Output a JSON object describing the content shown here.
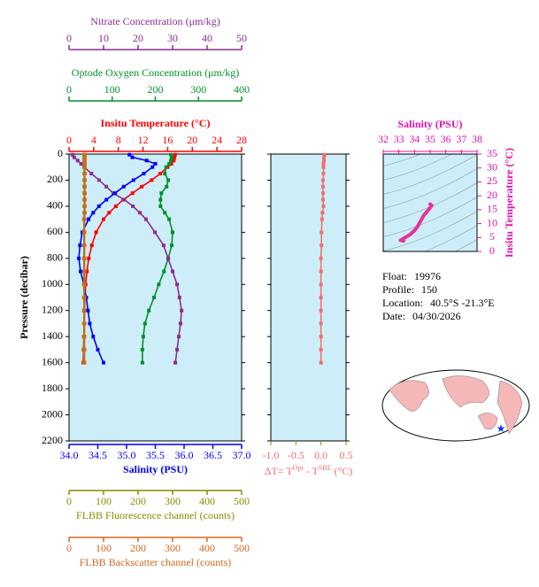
{
  "chart_data": [
    {
      "type": "line",
      "ylabel": "Pressure (decibar)",
      "ylim": [
        0,
        2200
      ],
      "y_inverted": true,
      "yticks": [
        0,
        200,
        400,
        600,
        800,
        1000,
        1200,
        1400,
        1600,
        1800,
        2000,
        2200
      ],
      "y": [
        5,
        25,
        50,
        75,
        100,
        150,
        200,
        250,
        300,
        350,
        400,
        450,
        500,
        600,
        700,
        800,
        900,
        1000,
        1100,
        1200,
        1300,
        1400,
        1500,
        1600
      ],
      "axes": [
        {
          "position": "top",
          "label": "Insitu Temperature (°C)",
          "color": "#ff0000",
          "xlim": [
            0,
            28
          ],
          "xticks": [
            0,
            4,
            8,
            12,
            16,
            20,
            24,
            28
          ],
          "values": [
            17.2,
            17.1,
            17.0,
            16.6,
            16.0,
            14.8,
            13.4,
            11.8,
            10.3,
            8.8,
            7.6,
            6.5,
            5.6,
            4.4,
            3.7,
            3.2,
            2.9,
            2.7,
            2.6,
            2.5,
            2.45,
            2.4,
            2.35,
            2.3
          ]
        },
        {
          "position": "top",
          "label": "Optode Oxygen Concentration (μm/kg)",
          "color": "#00902a",
          "xlim": [
            0,
            400
          ],
          "xticks": [
            0,
            100,
            200,
            300,
            400
          ],
          "values": [
            236,
            238,
            236,
            232,
            225,
            222,
            230,
            226,
            214,
            212,
            212,
            222,
            232,
            240,
            238,
            230,
            220,
            208,
            197,
            185,
            176,
            172,
            170,
            170
          ]
        },
        {
          "position": "top",
          "label": "Nitrate Concentration (μm/kg)",
          "color": "#8e2c8e",
          "xlim": [
            0,
            50
          ],
          "xticks": [
            0,
            10,
            20,
            30,
            40,
            50
          ],
          "values": [
            1,
            1.5,
            2.5,
            3.5,
            4.4,
            6.5,
            8.7,
            10.8,
            12.8,
            16,
            18.5,
            20.5,
            22.3,
            24.9,
            27.4,
            28.7,
            30,
            31.3,
            32,
            32.6,
            32.3,
            31.8,
            31.3,
            30.8
          ]
        },
        {
          "position": "bottom",
          "label": "Salinity (PSU)",
          "color": "#0000ff",
          "xlim": [
            34,
            37
          ],
          "xticks": [
            {
              "value": 34,
              "label": "34.0"
            },
            34.5,
            {
              "value": 35,
              "label": "35.0"
            },
            35.5,
            {
              "value": 36,
              "label": "36.0"
            },
            36.5,
            {
              "value": 37,
              "label": "37.0"
            }
          ],
          "values": [
            35.05,
            35.1,
            35.35,
            35.5,
            35.45,
            35.3,
            35.12,
            34.95,
            34.8,
            34.65,
            34.52,
            34.42,
            34.34,
            34.23,
            34.19,
            34.17,
            34.2,
            34.26,
            34.3,
            34.33,
            34.36,
            34.42,
            34.5,
            34.6
          ]
        },
        {
          "position": "bottom",
          "label": "FLBB Fluorescence channel (counts)",
          "color": "#8a8a00",
          "xlim": [
            0,
            500
          ],
          "xticks": [
            0,
            100,
            200,
            300,
            400,
            500
          ],
          "values": [
            44,
            44,
            44,
            44,
            44,
            44,
            44,
            44,
            44,
            44,
            44,
            44,
            43,
            43,
            43,
            43,
            43,
            43,
            43,
            43,
            43,
            43,
            43,
            43
          ]
        },
        {
          "position": "bottom",
          "label": "FLBB Backscatter channel (counts)",
          "color": "#d2691e",
          "xlim": [
            0,
            500
          ],
          "xticks": [
            0,
            100,
            200,
            300,
            400,
            500
          ],
          "values": [
            46,
            46,
            46,
            46,
            46,
            46,
            46,
            46,
            46,
            46,
            46,
            46,
            45,
            45,
            45,
            45,
            45,
            45,
            45,
            45,
            45,
            45,
            45,
            45
          ]
        }
      ]
    },
    {
      "type": "line",
      "xlabel_parts": [
        "ΔT= T",
        "Opt",
        " - T",
        "SBE",
        " (°C)"
      ],
      "color": "#f07070",
      "xlim": [
        -1,
        0.5
      ],
      "xticks": [
        {
          "value": -1,
          "label": "-1.0"
        },
        -0.5,
        {
          "value": 0,
          "label": "0.0"
        },
        0.5
      ],
      "ylim": [
        0,
        2200
      ],
      "y_inverted": true,
      "yticks": [
        0,
        200,
        400,
        600,
        800,
        1000,
        1200,
        1400,
        1600,
        1800,
        2000,
        2200
      ],
      "y": [
        5,
        25,
        50,
        75,
        100,
        150,
        200,
        250,
        300,
        350,
        400,
        450,
        500,
        600,
        700,
        800,
        900,
        1000,
        1100,
        1200,
        1300,
        1400,
        1500,
        1600
      ],
      "values": [
        0.07,
        0.06,
        0.06,
        0.05,
        0.05,
        0.05,
        0.04,
        0.04,
        0.04,
        0.04,
        0.05,
        0.03,
        0.02,
        0.01,
        0.01,
        0,
        0,
        0,
        0,
        0,
        0,
        0,
        0,
        0
      ]
    },
    {
      "type": "line",
      "title": "Salinity (PSU)",
      "ylabel": "Insitu Temperature (°C)",
      "color": "#e8309a",
      "label_color": "#e010b0",
      "xlim": [
        32,
        38
      ],
      "xticks": [
        32,
        33,
        34,
        35,
        36,
        37,
        38
      ],
      "ylim": [
        0,
        35
      ],
      "yticks": [
        0,
        5,
        10,
        15,
        20,
        25,
        30,
        35
      ],
      "x": [
        35.0,
        35.1,
        34.9,
        34.6,
        34.4,
        34.2,
        34.0,
        33.7,
        33.4,
        33.2,
        33.1,
        33.3
      ],
      "values": [
        17.0,
        16.5,
        15.0,
        13.0,
        11.0,
        9.0,
        7.5,
        6.0,
        5.0,
        4.3,
        4.0,
        3.8
      ]
    }
  ],
  "float_info": [
    {
      "label": "Float:",
      "value": "19976"
    },
    {
      "label": "Profile:",
      "value": "150"
    },
    {
      "label": "Location:",
      "value": "40.5°S  -21.3°E"
    },
    {
      "label": "Date:",
      "value": "04/30/2026"
    }
  ]
}
